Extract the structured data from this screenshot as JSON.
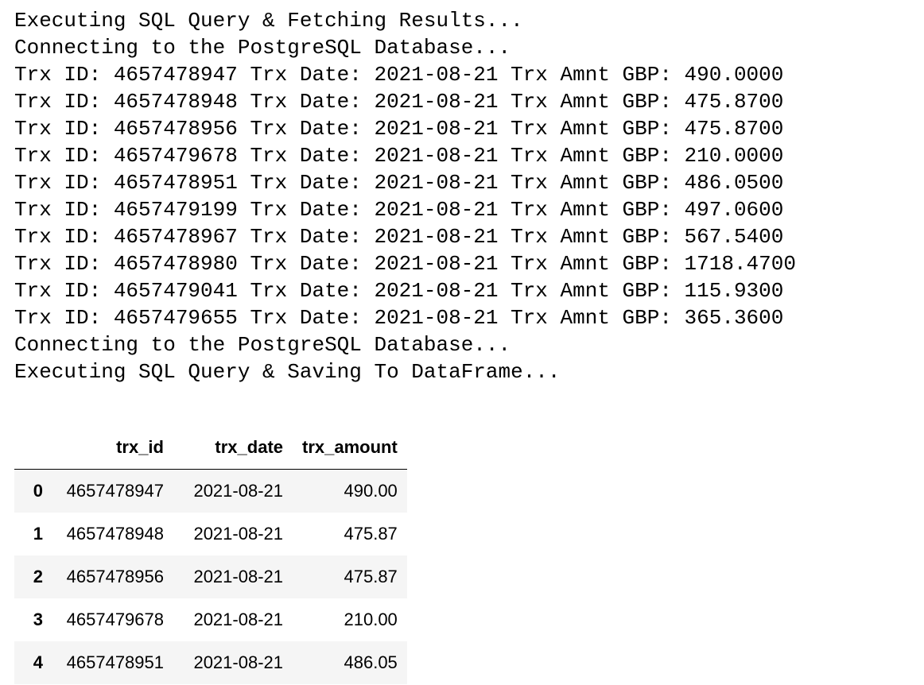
{
  "stdout": {
    "lines": [
      "Executing SQL Query & Fetching Results...",
      "Connecting to the PostgreSQL Database...",
      "Trx ID: 4657478947 Trx Date: 2021-08-21 Trx Amnt GBP: 490.0000",
      "Trx ID: 4657478948 Trx Date: 2021-08-21 Trx Amnt GBP: 475.8700",
      "Trx ID: 4657478956 Trx Date: 2021-08-21 Trx Amnt GBP: 475.8700",
      "Trx ID: 4657479678 Trx Date: 2021-08-21 Trx Amnt GBP: 210.0000",
      "Trx ID: 4657478951 Trx Date: 2021-08-21 Trx Amnt GBP: 486.0500",
      "Trx ID: 4657479199 Trx Date: 2021-08-21 Trx Amnt GBP: 497.0600",
      "Trx ID: 4657478967 Trx Date: 2021-08-21 Trx Amnt GBP: 567.5400",
      "Trx ID: 4657478980 Trx Date: 2021-08-21 Trx Amnt GBP: 1718.4700",
      "Trx ID: 4657479041 Trx Date: 2021-08-21 Trx Amnt GBP: 115.9300",
      "Trx ID: 4657479655 Trx Date: 2021-08-21 Trx Amnt GBP: 365.3600",
      "Connecting to the PostgreSQL Database...",
      "Executing SQL Query & Saving To DataFrame..."
    ]
  },
  "dataframe": {
    "index_header": "",
    "columns": [
      "trx_id",
      "trx_date",
      "trx_amount"
    ],
    "rows": [
      {
        "index": "0",
        "cells": [
          "4657478947",
          "2021-08-21",
          "490.00"
        ]
      },
      {
        "index": "1",
        "cells": [
          "4657478948",
          "2021-08-21",
          "475.87"
        ]
      },
      {
        "index": "2",
        "cells": [
          "4657478956",
          "2021-08-21",
          "475.87"
        ]
      },
      {
        "index": "3",
        "cells": [
          "4657479678",
          "2021-08-21",
          "210.00"
        ]
      },
      {
        "index": "4",
        "cells": [
          "4657478951",
          "2021-08-21",
          "486.05"
        ]
      }
    ],
    "stripe_color": "#f5f5f5"
  }
}
